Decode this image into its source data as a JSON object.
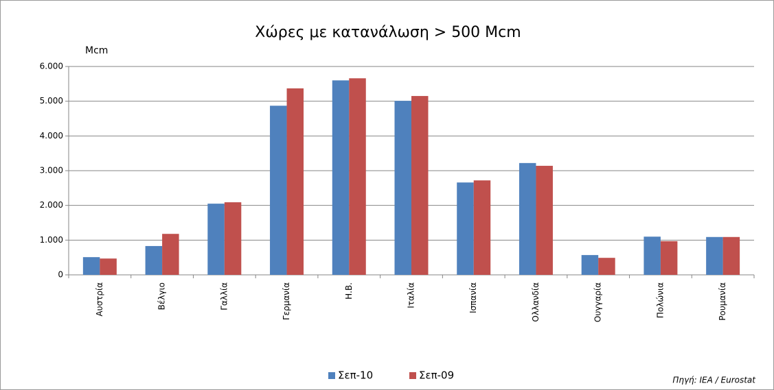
{
  "chart_data": {
    "type": "bar",
    "title": "Χώρες με κατανάλωση > 500 Mcm",
    "y_label": "Mcm",
    "source": "Πηγή: IEA /  Eurostat",
    "categories": [
      "Αυστρία",
      "Βέλγιο",
      "Γαλλία",
      "Γερμανία",
      "Η.Β.",
      "Ιταλία",
      "Ισπανία",
      "Ολλανδία",
      "Ουγγαρία",
      "Πολώνια",
      "Ρουμανία"
    ],
    "series": [
      {
        "name": "Σεπ-10",
        "color": "#4f81bd",
        "values": [
          510,
          830,
          2050,
          4870,
          5600,
          5010,
          2660,
          3220,
          570,
          1100,
          1090
        ]
      },
      {
        "name": "Σεπ-09",
        "color": "#c0504d",
        "values": [
          470,
          1180,
          2090,
          5370,
          5660,
          5150,
          2720,
          3140,
          490,
          970,
          1090
        ]
      }
    ],
    "ylim": [
      0,
      6000
    ],
    "yticks": [
      0,
      {
        "value": 1000,
        "label": "1.000"
      },
      {
        "value": 2000,
        "label": "2.000"
      },
      {
        "value": 3000,
        "label": "3.000"
      },
      {
        "value": 4000,
        "label": "4.000"
      },
      {
        "value": 5000,
        "label": "5.000"
      },
      {
        "value": 6000,
        "label": "6.000"
      }
    ],
    "grid": true,
    "legend": "bottom"
  }
}
